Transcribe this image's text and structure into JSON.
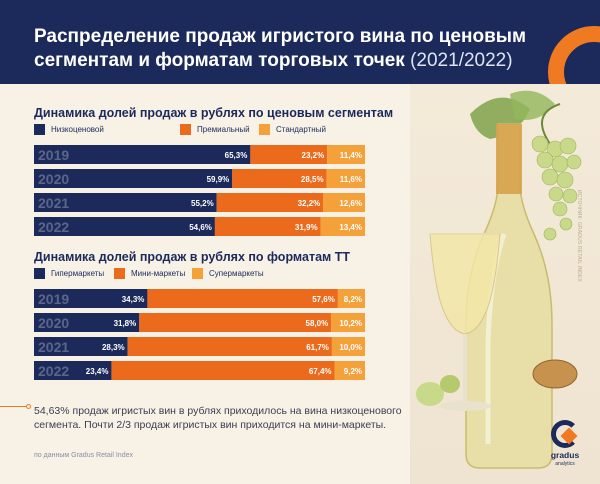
{
  "header": {
    "title_line1": "Распределение продаж игристого вина по ценовым",
    "title_line2": "сегментам и форматам торговых точек",
    "title_years": "(2021/2022)"
  },
  "colors": {
    "navy": "#1b2a5a",
    "orange_dark": "#ec6a1c",
    "orange_light": "#f5a13a",
    "accent": "#f07a22"
  },
  "chart_data": [
    {
      "type": "bar",
      "orientation": "horizontal-stacked-100",
      "title": "Динамика долей продаж в рублях по ценовым сегментам",
      "categories": [
        "2019",
        "2020",
        "2021",
        "2022"
      ],
      "series": [
        {
          "name": "Низкоценовой",
          "values": [
            65.3,
            59.9,
            55.2,
            54.6
          ],
          "labels": [
            "65,3%",
            "59,9%",
            "55,2%",
            "54,6%"
          ],
          "color": "#1b2a5a"
        },
        {
          "name": "Премиальный",
          "values": [
            23.2,
            28.5,
            32.2,
            31.9
          ],
          "labels": [
            "23,2%",
            "28,5%",
            "32,2%",
            "31,9%"
          ],
          "color": "#ec6a1c"
        },
        {
          "name": "Стандартный",
          "values": [
            11.4,
            11.6,
            12.6,
            13.4
          ],
          "labels": [
            "11,4%",
            "11,6%",
            "12,6%",
            "13,4%"
          ],
          "color": "#f5a13a"
        }
      ]
    },
    {
      "type": "bar",
      "orientation": "horizontal-stacked-100",
      "title": "Динамика долей продаж в рублях по форматам ТТ",
      "categories": [
        "2019",
        "2020",
        "2021",
        "2022"
      ],
      "series": [
        {
          "name": "Гипермаркеты",
          "values": [
            34.3,
            31.8,
            28.3,
            23.4
          ],
          "labels": [
            "34,3%",
            "31,8%",
            "28,3%",
            "23,4%"
          ],
          "color": "#1b2a5a"
        },
        {
          "name": "Мини-маркеты",
          "values": [
            57.6,
            58.0,
            61.7,
            67.4
          ],
          "labels": [
            "57,6%",
            "58,0%",
            "61,7%",
            "67,4%"
          ],
          "color": "#ec6a1c"
        },
        {
          "name": "Супермаркеты",
          "values": [
            8.2,
            10.2,
            10.0,
            9.2
          ],
          "labels": [
            "8,2%",
            "10,2%",
            "10,0%",
            "9,2%"
          ],
          "color": "#f5a13a"
        }
      ]
    }
  ],
  "summary": "54,63% продаж игристых вин в рублях приходилось на вина низкоценового сегмента. Почти 2/3 продаж игристых вин приходится на мини-маркеты.",
  "source": "по данным Gradus Retail Index",
  "side_text": "ИСТОЧНИК: GRADUS RETAIL INDEX",
  "logo": {
    "name": "gradus",
    "sub": "analytics"
  }
}
